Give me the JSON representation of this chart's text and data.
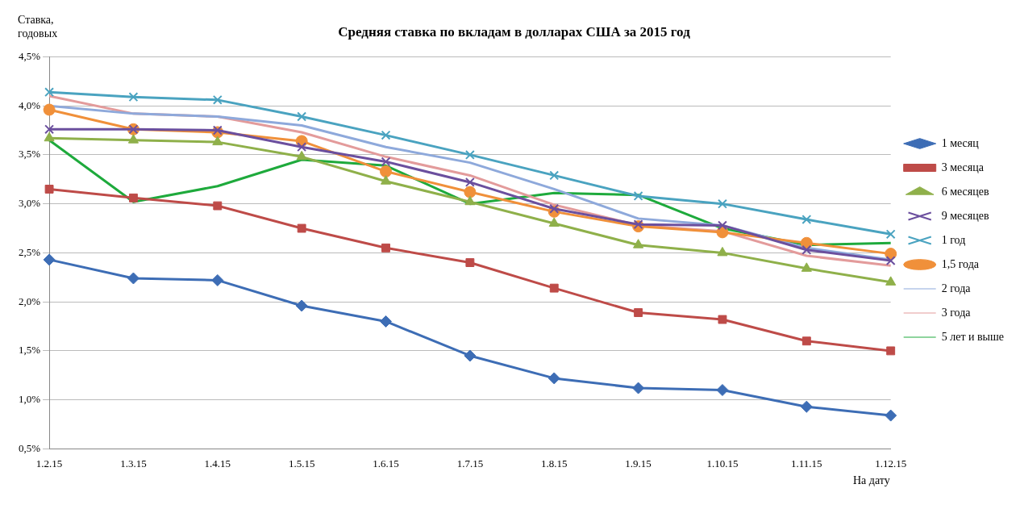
{
  "chart_data": {
    "type": "line",
    "title": "Средняя ставка по вкладам в долларах США за 2015 год",
    "ylabel": "Ставка, годовых",
    "xlabel": "На дату",
    "categories": [
      "1.2.15",
      "1.3.15",
      "1.4.15",
      "1.5.15",
      "1.6.15",
      "1.7.15",
      "1.8.15",
      "1.9.15",
      "1.10.15",
      "1.11.15",
      "1.12.15"
    ],
    "series": [
      {
        "name": "1 месяц",
        "color": "#3d6db5",
        "marker": "diamond",
        "values": [
          2.43,
          2.24,
          2.22,
          1.96,
          1.8,
          1.45,
          1.22,
          1.12,
          1.1,
          0.93,
          0.84
        ]
      },
      {
        "name": "3 месяца",
        "color": "#be4b48",
        "marker": "square",
        "values": [
          3.15,
          3.06,
          2.98,
          2.75,
          2.55,
          2.4,
          2.14,
          1.89,
          1.82,
          1.6,
          1.5
        ]
      },
      {
        "name": "6 месяцев",
        "color": "#8fb04a",
        "marker": "triangle",
        "values": [
          3.67,
          3.65,
          3.63,
          3.48,
          3.23,
          3.02,
          2.8,
          2.58,
          2.5,
          2.34,
          2.2
        ]
      },
      {
        "name": "9 месяцев",
        "color": "#6b4f9e",
        "marker": "cross",
        "values": [
          3.76,
          3.76,
          3.75,
          3.58,
          3.43,
          3.22,
          2.95,
          2.79,
          2.78,
          2.53,
          2.42
        ]
      },
      {
        "name": "1 год",
        "color": "#4aa3c0",
        "marker": "cross",
        "values": [
          4.14,
          4.09,
          4.06,
          3.89,
          3.7,
          3.5,
          3.29,
          3.08,
          3.0,
          2.84,
          2.69
        ]
      },
      {
        "name": "1,5 года",
        "color": "#f0903a",
        "marker": "circle",
        "values": [
          3.96,
          3.76,
          3.73,
          3.64,
          3.33,
          3.12,
          2.92,
          2.77,
          2.71,
          2.6,
          2.49
        ]
      },
      {
        "name": "2 года",
        "color": "#8ea9db",
        "marker": "none",
        "values": [
          4.0,
          3.92,
          3.89,
          3.8,
          3.58,
          3.42,
          3.15,
          2.85,
          2.78,
          2.55,
          2.43
        ]
      },
      {
        "name": "3 года",
        "color": "#e39b9b",
        "marker": "none",
        "values": [
          4.1,
          3.92,
          3.89,
          3.73,
          3.48,
          3.29,
          2.99,
          2.78,
          2.72,
          2.47,
          2.37
        ]
      },
      {
        "name": "5 лет и выше",
        "color": "#1eaa3c",
        "marker": "none",
        "values": [
          3.65,
          3.02,
          3.18,
          3.45,
          3.39,
          3.0,
          3.11,
          3.09,
          2.75,
          2.58,
          2.6
        ]
      }
    ],
    "ylim": [
      0.5,
      4.5
    ],
    "yticks": [
      {
        "value": 0.5,
        "label": "0,5%"
      },
      {
        "value": 1,
        "label": "1,0%"
      },
      {
        "value": 1.5,
        "label": "1,5%"
      },
      {
        "value": 2,
        "label": "2,0%"
      },
      {
        "value": 2.5,
        "label": "2,5%"
      },
      {
        "value": 3,
        "label": "3,0%"
      },
      {
        "value": 3.5,
        "label": "3,5%"
      },
      {
        "value": 4,
        "label": "4,0%"
      },
      {
        "value": 4.5,
        "label": "4,5%"
      }
    ],
    "grid": "y",
    "legend": "right"
  }
}
